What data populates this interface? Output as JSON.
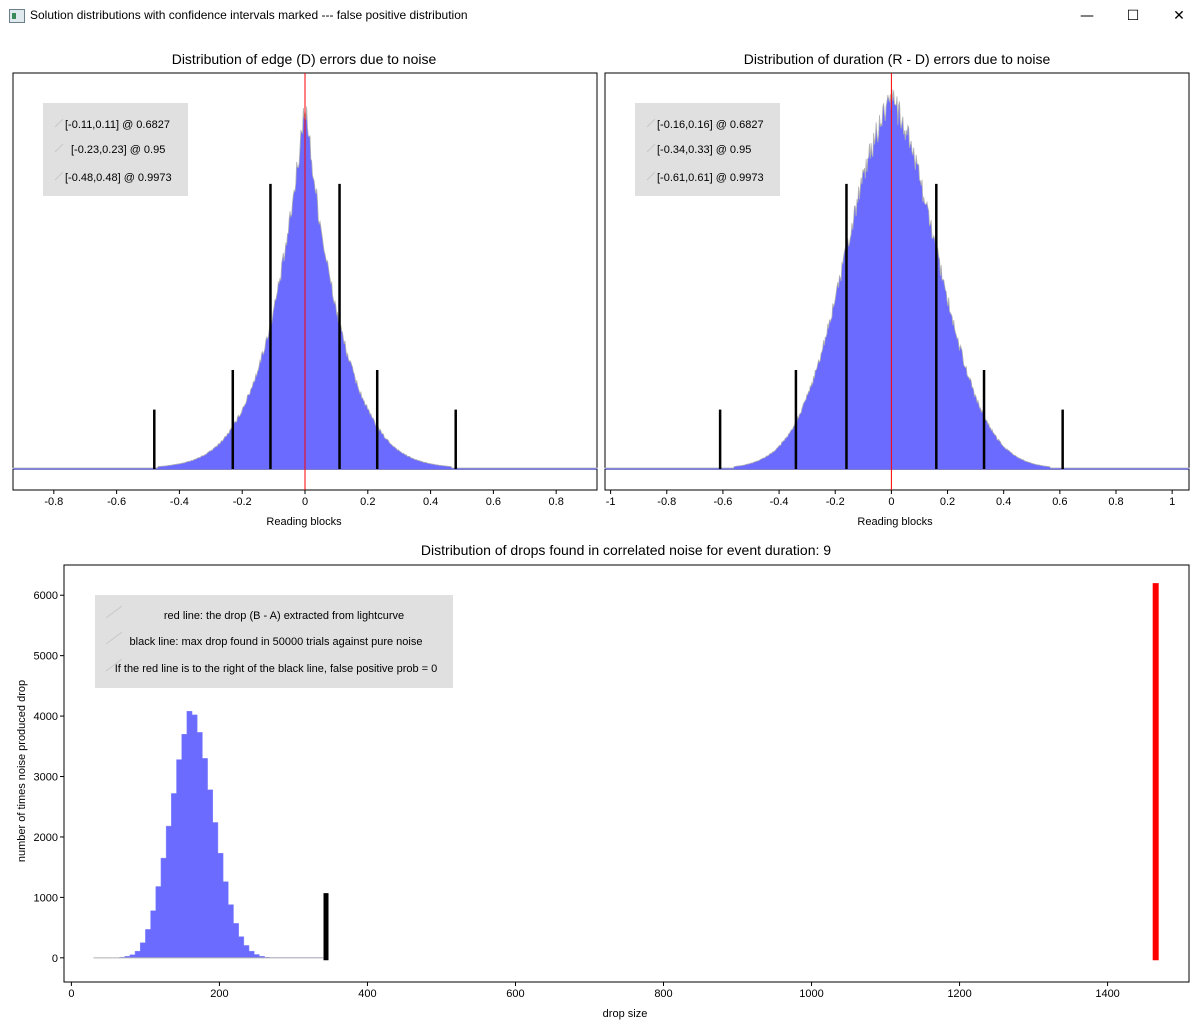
{
  "window": {
    "title": "Solution distributions with confidence intervals marked --- false positive distribution",
    "minimize_glyph": "—",
    "maximize_glyph": "☐",
    "close_glyph": "✕",
    "icon": "app-window-icon"
  },
  "colors": {
    "hist_fill": "#6b6bff",
    "hist_edge": "#b0b0b0",
    "red_line": "#ff0000",
    "black_line": "#000000",
    "legend_bg": "#e0e0e0"
  },
  "chart_data": [
    {
      "type": "bar",
      "title": "Distribution of edge (D) errors due to noise",
      "xlabel": "Reading blocks",
      "ylabel": "",
      "xlim": [
        -0.93,
        0.93
      ],
      "x_ticks": [
        "-0.8",
        "-0.6",
        "-0.4",
        "-0.2",
        "0",
        "0.2",
        "0.4",
        "0.6",
        "0.8"
      ],
      "x_tick_values": [
        -0.8,
        -0.6,
        -0.4,
        -0.2,
        0,
        0.2,
        0.4,
        0.6,
        0.8
      ],
      "distribution": {
        "shape": "laplace-like",
        "center": 0,
        "scale": 0.13,
        "peak_fraction": 0.93
      },
      "red_line_x": 0,
      "ci_lines": [
        {
          "lo": -0.11,
          "hi": 0.11,
          "height_fraction": 0.72
        },
        {
          "lo": -0.23,
          "hi": 0.23,
          "height_fraction": 0.25
        },
        {
          "lo": -0.48,
          "hi": 0.48,
          "height_fraction": 0.15
        }
      ],
      "legend": [
        "[-0.11,0.11] @ 0.6827",
        "[-0.23,0.23] @ 0.95",
        "[-0.48,0.48] @ 0.9973"
      ],
      "legend_position": "top-left"
    },
    {
      "type": "bar",
      "title": "Distribution of duration (R - D) errors due to noise",
      "xlabel": "Reading blocks",
      "ylabel": "",
      "xlim": [
        -1.02,
        1.06
      ],
      "x_ticks": [
        "-1",
        "-0.8",
        "-0.6",
        "-0.4",
        "-0.2",
        "0",
        "0.2",
        "0.4",
        "0.6",
        "0.8",
        "1"
      ],
      "x_tick_values": [
        -1,
        -0.8,
        -0.6,
        -0.4,
        -0.2,
        0,
        0.2,
        0.4,
        0.6,
        0.8,
        1
      ],
      "distribution": {
        "shape": "gaussian-like",
        "center": 0,
        "scale": 0.17,
        "peak_fraction": 0.93
      },
      "red_line_x": 0,
      "ci_lines": [
        {
          "lo": -0.16,
          "hi": 0.16,
          "height_fraction": 0.72
        },
        {
          "lo": -0.34,
          "hi": 0.33,
          "height_fraction": 0.25
        },
        {
          "lo": -0.61,
          "hi": 0.61,
          "height_fraction": 0.15
        }
      ],
      "legend": [
        "[-0.16,0.16] @ 0.6827",
        "[-0.34,0.33] @ 0.95",
        "[-0.61,0.61] @ 0.9973"
      ],
      "legend_position": "top-left"
    },
    {
      "type": "bar",
      "title": "Distribution of drops found in correlated noise for event duration: 9",
      "xlabel": "drop size",
      "ylabel": "number of times noise produced drop",
      "xlim": [
        -10,
        1510
      ],
      "ylim": [
        -400,
        6500
      ],
      "x_ticks": [
        "0",
        "200",
        "400",
        "600",
        "800",
        "1000",
        "1200",
        "1400"
      ],
      "x_tick_values": [
        0,
        200,
        400,
        600,
        800,
        1000,
        1200,
        1400
      ],
      "y_ticks": [
        "0",
        "1000",
        "2000",
        "3000",
        "4000",
        "5000",
        "6000"
      ],
      "y_tick_values": [
        0,
        1000,
        2000,
        3000,
        4000,
        5000,
        6000
      ],
      "histogram": {
        "bin_width": 7,
        "bins": [
          [
            30,
            0
          ],
          [
            65,
            10
          ],
          [
            72,
            25
          ],
          [
            79,
            50
          ],
          [
            86,
            110
          ],
          [
            93,
            250
          ],
          [
            100,
            470
          ],
          [
            107,
            780
          ],
          [
            114,
            1180
          ],
          [
            121,
            1650
          ],
          [
            128,
            2180
          ],
          [
            135,
            2720
          ],
          [
            142,
            3280
          ],
          [
            149,
            3700
          ],
          [
            156,
            4080
          ],
          [
            163,
            4020
          ],
          [
            170,
            3730
          ],
          [
            177,
            3300
          ],
          [
            184,
            2780
          ],
          [
            191,
            2240
          ],
          [
            198,
            1730
          ],
          [
            205,
            1260
          ],
          [
            212,
            880
          ],
          [
            219,
            570
          ],
          [
            226,
            350
          ],
          [
            233,
            205
          ],
          [
            240,
            110
          ],
          [
            247,
            55
          ],
          [
            254,
            25
          ],
          [
            261,
            10
          ],
          [
            268,
            4
          ],
          [
            340,
            0
          ]
        ]
      },
      "black_line": {
        "x": 344,
        "y_top": 1070
      },
      "red_line": {
        "x": 1465,
        "y_top": 6200
      },
      "legend": [
        "red line: the drop (B - A) extracted from lightcurve",
        "black line: max drop found in 50000 trials against pure noise",
        "If the red line is to the right of the black line, false positive prob = 0"
      ],
      "legend_position": "top-left"
    }
  ]
}
